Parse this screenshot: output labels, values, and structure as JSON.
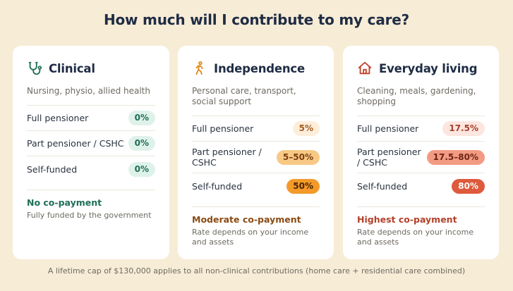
{
  "title": "How much will I contribute to my care?",
  "colors": {
    "background": "#f7ecd6",
    "clinical": "#1f6e57",
    "independence": "#e08a1e",
    "everyday": "#c0412a"
  },
  "cards": [
    {
      "icon": "stethoscope-icon",
      "title": "Clinical",
      "description": "Nursing, physio, allied health",
      "rows": [
        {
          "label": "Full pensioner",
          "value": "0%"
        },
        {
          "label": "Part pensioner / CSHC",
          "value": "0%"
        },
        {
          "label": "Self-funded",
          "value": "0%"
        }
      ],
      "footer_title": "No co-payment",
      "footer_note": "Fully funded by the government"
    },
    {
      "icon": "walking-person-icon",
      "title": "Independence",
      "description": "Personal care, transport, social support",
      "rows": [
        {
          "label": "Full pensioner",
          "value": "5%"
        },
        {
          "label": "Part pensioner / CSHC",
          "value": "5–50%"
        },
        {
          "label": "Self-funded",
          "value": "50%"
        }
      ],
      "footer_title": "Moderate co-payment",
      "footer_note": "Rate depends on your income and assets"
    },
    {
      "icon": "house-icon",
      "title": "Everyday living",
      "description": "Cleaning, meals, gardening, shopping",
      "rows": [
        {
          "label": "Full pensioner",
          "value": "17.5%"
        },
        {
          "label": "Part pensioner / CSHC",
          "value": "17.5–80%"
        },
        {
          "label": "Self-funded",
          "value": "80%"
        }
      ],
      "footer_title": "Highest co-payment",
      "footer_note": "Rate depends on your income and assets"
    }
  ],
  "footer": "A lifetime cap of $130,000 applies to all non-clinical contributions (home care + residential care combined)"
}
